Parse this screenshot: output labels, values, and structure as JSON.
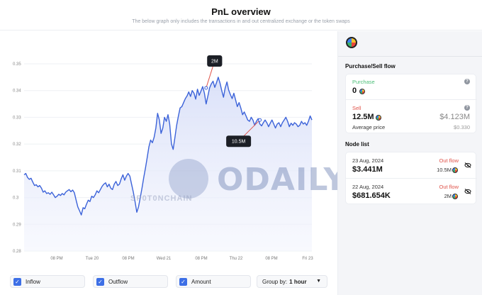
{
  "header": {
    "title": "PnL overview",
    "subtitle": "The below graph only includes the transactions in and out centralized exchange or the token swaps"
  },
  "chart_data": {
    "type": "area",
    "y_ticks": [
      "0.35",
      "0.34",
      "0.33",
      "0.32",
      "0.31",
      "0.3",
      "0.29",
      "0.28"
    ],
    "x_ticks": [
      "08 PM",
      "Tue 20",
      "08 PM",
      "Wed 21",
      "08 PM",
      "Thu 22",
      "08 PM",
      "Fri 23"
    ],
    "ylim": [
      0.28,
      0.35
    ],
    "series": [
      {
        "values": [
          0.3085,
          0.309,
          0.3075,
          0.3068,
          0.3072,
          0.3058,
          0.3045,
          0.3048,
          0.304,
          0.3045,
          0.3035,
          0.302,
          0.3025,
          0.3015,
          0.3018,
          0.3012,
          0.302,
          0.301,
          0.3,
          0.3005,
          0.3012,
          0.3008,
          0.3015,
          0.301,
          0.302,
          0.3025,
          0.303,
          0.3022,
          0.3028,
          0.3018,
          0.299,
          0.2965,
          0.295,
          0.2935,
          0.2962,
          0.2958,
          0.2975,
          0.299,
          0.2985,
          0.3005,
          0.3,
          0.301,
          0.3025,
          0.3018,
          0.303,
          0.3042,
          0.305,
          0.3055,
          0.304,
          0.305,
          0.3035,
          0.303,
          0.305,
          0.306,
          0.3045,
          0.305,
          0.307,
          0.3085,
          0.3065,
          0.308,
          0.309,
          0.308,
          0.305,
          0.302,
          0.2985,
          0.2945,
          0.2965,
          0.3,
          0.3035,
          0.3075,
          0.311,
          0.315,
          0.319,
          0.3215,
          0.3205,
          0.3225,
          0.326,
          0.3315,
          0.329,
          0.324,
          0.326,
          0.33,
          0.3285,
          0.331,
          0.3275,
          0.32,
          0.318,
          0.3225,
          0.327,
          0.3305,
          0.3335,
          0.334,
          0.3355,
          0.337,
          0.338,
          0.3395,
          0.3378,
          0.34,
          0.339,
          0.3368,
          0.3405,
          0.3382,
          0.3398,
          0.3415,
          0.339,
          0.335,
          0.338,
          0.341,
          0.3425,
          0.3435,
          0.3412,
          0.343,
          0.345,
          0.3428,
          0.34,
          0.3375,
          0.341,
          0.3432,
          0.3402,
          0.3385,
          0.337,
          0.339,
          0.3365,
          0.334,
          0.3355,
          0.3335,
          0.331,
          0.332,
          0.3305,
          0.329,
          0.3285,
          0.33,
          0.329,
          0.327,
          0.3285,
          0.3295,
          0.3275,
          0.3268,
          0.328,
          0.329,
          0.328,
          0.3265,
          0.3278,
          0.329,
          0.3275,
          0.326,
          0.3275,
          0.328,
          0.3265,
          0.328,
          0.329,
          0.33,
          0.3285,
          0.3265,
          0.3278,
          0.327,
          0.328,
          0.3275,
          0.3265,
          0.327,
          0.3285,
          0.3275,
          0.328,
          0.327,
          0.3285,
          0.3305,
          0.329
        ]
      }
    ],
    "annotations": [
      {
        "label": "2M",
        "x_index": 105,
        "y": 0.341
      },
      {
        "label": "10.5M",
        "x_index": 136,
        "y": 0.329
      }
    ],
    "grid": true
  },
  "watermark": {
    "brand": "ODAILY",
    "sub": "SP0T0NCHAIN"
  },
  "controls": {
    "inflow_label": "Inflow",
    "outflow_label": "Outflow",
    "amount_label": "Amount",
    "groupby_label": "Group by:",
    "groupby_value": "1 hour"
  },
  "side": {
    "flow_title": "Purchase/Sell flow",
    "purchase_label": "Purchase",
    "purchase_value": "0",
    "sell_label": "Sell",
    "sell_value": "12.5M",
    "sell_usd": "$4.123M",
    "avg_label": "Average price",
    "avg_value": "$0.330",
    "node_title": "Node list",
    "nodes": [
      {
        "date": "23 Aug, 2024",
        "direction": "Out flow",
        "usd": "$3.441M",
        "amount": "10.5M"
      },
      {
        "date": "22 Aug, 2024",
        "direction": "Out flow",
        "usd": "$681.654K",
        "amount": "2M"
      }
    ]
  },
  "colors": {
    "line": "#3b62d9",
    "fill": "#dfe5f9",
    "green": "#4cbf78",
    "red": "#e0534a"
  }
}
